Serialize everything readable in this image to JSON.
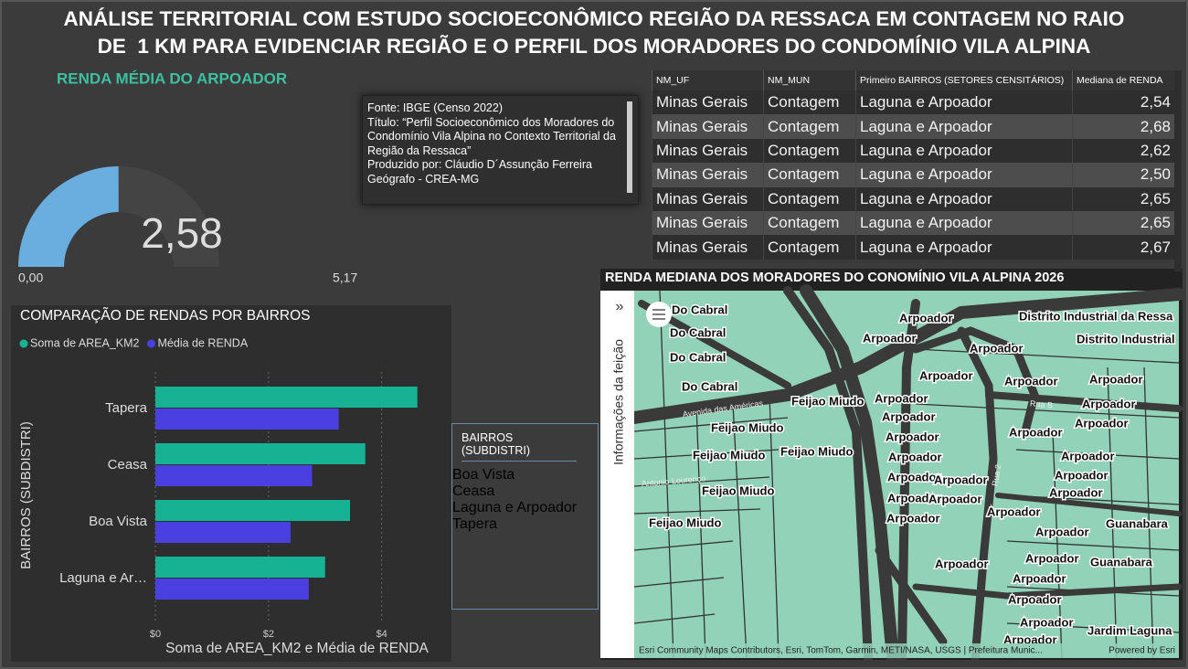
{
  "header": {
    "title": [
      "ANÁLISE TERRITORIAL COM ESTUDO SOCIOECONÔMICO REGIÃO DA RESSACA EM CONTAGEM NO RAIO",
      "DE  1 KM PARA EVIDENCIAR REGIÃO E O PERFIL DOS MORADORES DO CONDOMÍNIO VILA ALPINA"
    ]
  },
  "chart_data": [
    {
      "type": "gauge",
      "title": "RENDA MÉDIA DO ARPOADOR",
      "values": [
        2.58
      ],
      "value_labels": [
        "2,58"
      ],
      "color": "#6aaee0",
      "ylim": [
        0,
        5.17
      ],
      "yticks": [
        {
          "value": 0,
          "label": "0,00"
        },
        {
          "value": 5.17,
          "label": "5,17"
        }
      ]
    },
    {
      "type": "bar",
      "orientation": "horizontal",
      "title": "COMPARAÇÃO DE RENDAS POR BAIRROS",
      "categories": [
        "Tapera",
        "Ceasa",
        "Boa Vista",
        "Laguna e Ar…"
      ],
      "series": [
        {
          "name": "Soma de AREA_KM2",
          "color": "#17b293",
          "values": [
            4.63,
            3.71,
            3.44,
            3.0
          ]
        },
        {
          "name": "Média de RENDA",
          "color": "#4a3fe0",
          "values": [
            3.24,
            2.77,
            2.39,
            2.71
          ]
        }
      ],
      "xlim": [
        0,
        5.2
      ],
      "xticks": [
        {
          "value": 0,
          "label": "$0"
        },
        {
          "value": 2,
          "label": "$2"
        },
        {
          "value": 4,
          "label": "$4"
        }
      ],
      "xlabel": "Soma de AREA_KM2 e Média de RENDA",
      "ylabel": "BAIRROS (SUBDISTRI)",
      "legend": "top-left",
      "grid": true
    }
  ],
  "source": {
    "lines": [
      "Fonte: IBGE (Censo 2022)",
      "Título: “Perfil Socioeconômico dos Moradores do Condomínio Vila Alpina no Contexto Territorial da Região da Ressaca”",
      "Produzido por: Cláudio D´Assunção Ferreira Geógrafo - CREA-MG"
    ]
  },
  "table": {
    "columns": [
      "NM_UF",
      "NM_MUN",
      "Primeiro BAIRROS (SETORES CENSITÁRIOS)",
      "Mediana de RENDA"
    ],
    "rows": [
      [
        "Minas Gerais",
        "Contagem",
        "Laguna e Arpoador",
        "2,54"
      ],
      [
        "Minas Gerais",
        "Contagem",
        "Laguna e Arpoador",
        "2,68"
      ],
      [
        "Minas Gerais",
        "Contagem",
        "Laguna e Arpoador",
        "2,62"
      ],
      [
        "Minas Gerais",
        "Contagem",
        "Laguna e Arpoador",
        "2,50"
      ],
      [
        "Minas Gerais",
        "Contagem",
        "Laguna e Arpoador",
        "2,65"
      ],
      [
        "Minas Gerais",
        "Contagem",
        "Laguna e Arpoador",
        "2,65"
      ],
      [
        "Minas Gerais",
        "Contagem",
        "Laguna e Arpoador",
        "2,67"
      ]
    ]
  },
  "slicer": {
    "title": "BAIRROS (SUBDISTRI)",
    "items": [
      "Boa Vista",
      "Ceasa",
      "Laguna e Arpoador",
      "Tapera"
    ]
  },
  "map": {
    "title": "RENDA MEDIANA DOS MORADORES DO CONOMÍNIO VILA ALPINA 2026",
    "sidebar": "Informações da feição",
    "labels": [
      "Do Cabral",
      "Do Cabral",
      "Do Cabral",
      "Do Cabral",
      "Arpoador",
      "Distrito Industrial da Ressa",
      "Arpoador",
      "Distrito Industrial",
      "Arpoador",
      "Arpoador",
      "Arpoador",
      "Arpoador",
      "Feijao Miudo",
      "Arpoador",
      "Arpoador",
      "Arpoador",
      "Arpoador",
      "Feijao Miudo",
      "Arpoador",
      "Arpoador",
      "Feijao Miudo",
      "Feijao Miudo",
      "Arpoador",
      "Arpoador",
      "Arpoador",
      "Arpoador",
      "Arpoador",
      "Feijao Miudo",
      "Arpoador",
      "Arpoador",
      "Arpoador",
      "Arpoador",
      "Arpoador",
      "Feijao Miudo",
      "Guanabara",
      "Arpoador",
      "Arpoador",
      "Arpoador",
      "Guanabara",
      "Arpoador",
      "Arpoador",
      "Arpoador",
      "Jardim Laguna",
      "Arpoador"
    ],
    "streets": [
      "Avenida das Américas",
      "Rua 2",
      "Rua B",
      "Antonio Lourenço"
    ],
    "attribution": "Esri Community Maps Contributors, Esri, TomTom, Garmin, METI/NASA, USGS | Prefeitura Munic...",
    "powered": "Powered by Esri"
  }
}
